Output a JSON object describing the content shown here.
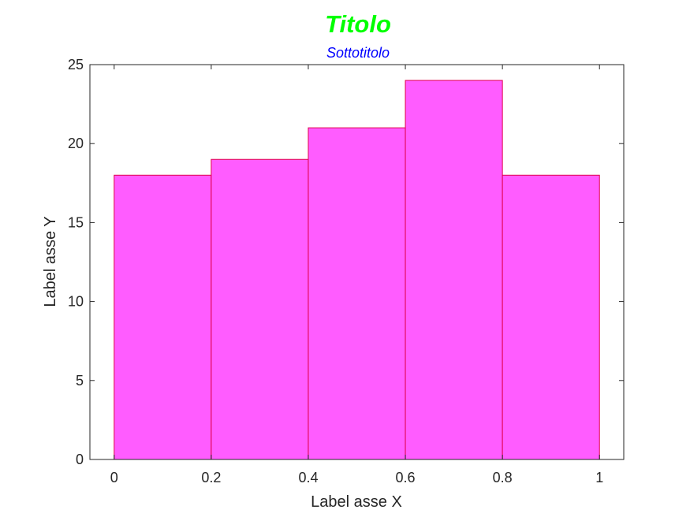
{
  "chart_data": {
    "type": "bar",
    "title": "Titolo",
    "subtitle": "Sottotitolo",
    "xlabel": "Label asse X",
    "ylabel": "Label asse Y",
    "bin_edges": [
      0,
      0.2,
      0.4,
      0.6,
      0.8,
      1.0
    ],
    "values": [
      18,
      19,
      21,
      24,
      18
    ],
    "xlim": [
      -0.05,
      1.05
    ],
    "ylim": [
      0,
      25
    ],
    "xticks": [
      0,
      0.2,
      0.4,
      0.6,
      0.8,
      1
    ],
    "xtick_labels": [
      "0",
      "0.2",
      "0.4",
      "0.6",
      "0.8",
      "1"
    ],
    "yticks": [
      0,
      5,
      10,
      15,
      20,
      25
    ],
    "ytick_labels": [
      "0",
      "5",
      "10",
      "15",
      "20",
      "25"
    ],
    "grid": false,
    "colors": {
      "title": "#00ff00",
      "subtitle": "#0000ff",
      "bar_fill": "#ff5cff",
      "bar_edge": "#e0004a",
      "axes": "#262626"
    }
  }
}
